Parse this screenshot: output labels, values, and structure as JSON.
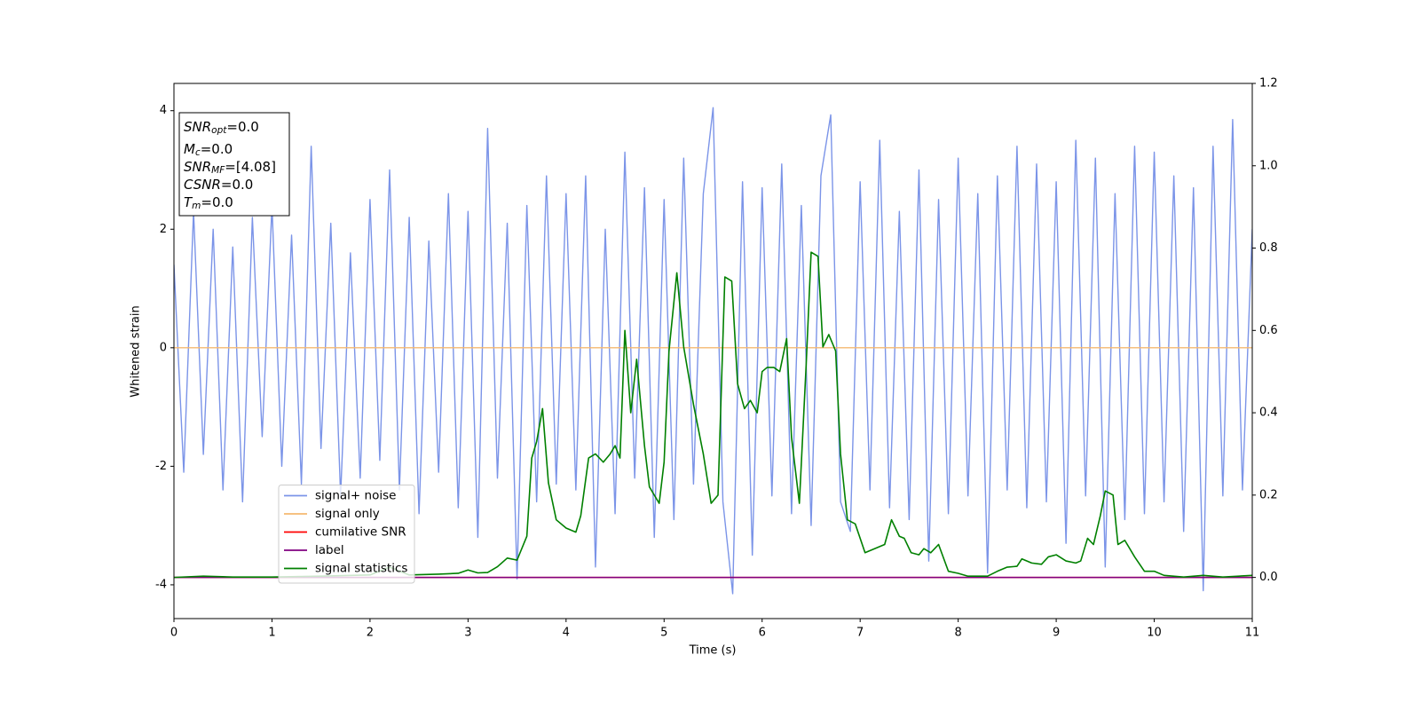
{
  "chart_data": {
    "type": "line",
    "xlabel": "Time (s)",
    "ylabel": "Whitened strain",
    "xlim": [
      0,
      11
    ],
    "xticks": [
      0,
      1,
      2,
      3,
      4,
      5,
      6,
      7,
      8,
      9,
      10,
      11
    ],
    "ylim": [
      -4.57,
      4.46
    ],
    "yticks": [
      -4,
      -2,
      0,
      2,
      4
    ],
    "y2lim": [
      -0.1,
      1.2
    ],
    "y2ticks": [
      {
        "value": 0,
        "label": "0.0"
      },
      0.2,
      0.4,
      0.6,
      0.8,
      {
        "value": 1,
        "label": "1.0"
      },
      1.2
    ],
    "legend": "lower left",
    "annotation": [
      {
        "main": "SNR",
        "sub": "opt",
        "tail": "=0.0"
      },
      {
        "main": "M",
        "sub": "c",
        "tail": "=0.0"
      },
      {
        "main": "SNR",
        "sub": "MF",
        "tail": "=[4.08]"
      },
      {
        "main": "CSNR",
        "sub": null,
        "tail": "=0.0"
      },
      {
        "main": "T",
        "sub": "m",
        "tail": "=0.0"
      }
    ],
    "series": [
      {
        "name": "signal+ noise",
        "color": "#7b94e8",
        "x": [
          0,
          0.1,
          0.2,
          0.3,
          0.4,
          0.5,
          0.6,
          0.7,
          0.8,
          0.9,
          1,
          1.1,
          1.2,
          1.3,
          1.4,
          1.5,
          1.6,
          1.7,
          1.8,
          1.9,
          2,
          2.1,
          2.2,
          2.3,
          2.4,
          2.5,
          2.6,
          2.7,
          2.8,
          2.9,
          3,
          3.1,
          3.2,
          3.3,
          3.4,
          3.5,
          3.6,
          3.7,
          3.8,
          3.9,
          4,
          4.1,
          4.2,
          4.3,
          4.4,
          4.5,
          4.6,
          4.7,
          4.8,
          4.9,
          5,
          5.1,
          5.2,
          5.3,
          5.4,
          5.5,
          5.6,
          5.7,
          5.8,
          5.9,
          6,
          6.1,
          6.2,
          6.3,
          6.4,
          6.5,
          6.6,
          6.7,
          6.8,
          6.9,
          7,
          7.1,
          7.2,
          7.3,
          7.4,
          7.5,
          7.6,
          7.7,
          7.8,
          7.9,
          8,
          8.1,
          8.2,
          8.3,
          8.4,
          8.5,
          8.6,
          8.7,
          8.8,
          8.9,
          9,
          9.1,
          9.2,
          9.3,
          9.4,
          9.5,
          9.6,
          9.7,
          9.8,
          9.9,
          10,
          10.1,
          10.2,
          10.3,
          10.4,
          10.5,
          10.6,
          10.7,
          10.8,
          10.9,
          11
        ],
        "values": [
          1.4,
          -2.1,
          2.3,
          -1.8,
          2.0,
          -2.4,
          1.7,
          -2.6,
          2.2,
          -1.5,
          2.4,
          -2.0,
          1.9,
          -2.3,
          3.4,
          -1.7,
          2.1,
          -2.5,
          1.6,
          -2.2,
          2.5,
          -1.9,
          3.0,
          -2.4,
          2.2,
          -2.8,
          1.8,
          -2.1,
          2.6,
          -2.7,
          2.3,
          -3.2,
          3.7,
          -2.2,
          2.1,
          -3.9,
          2.4,
          -2.6,
          2.9,
          -2.3,
          2.6,
          -2.4,
          2.9,
          -3.7,
          2.0,
          -2.8,
          3.3,
          -2.2,
          2.7,
          -3.2,
          2.5,
          -2.9,
          3.2,
          -2.3,
          2.6,
          4.05,
          -2.6,
          -4.15,
          2.8,
          -3.5,
          2.7,
          -2.5,
          3.1,
          -2.8,
          2.4,
          -3.0,
          2.9,
          3.93,
          -2.6,
          -3.1,
          2.8,
          -2.4,
          3.5,
          -2.7,
          2.3,
          -2.9,
          3.0,
          -3.6,
          2.5,
          -2.8,
          3.2,
          -2.5,
          2.6,
          -3.8,
          2.9,
          -2.4,
          3.4,
          -2.7,
          3.1,
          -2.6,
          2.8,
          -3.3,
          3.5,
          -2.5,
          3.2,
          -3.7,
          2.6,
          -2.9,
          3.4,
          -2.8,
          3.3,
          -2.6,
          2.9,
          -3.1,
          2.7,
          -4.1,
          3.4,
          -2.5,
          3.85,
          -2.4,
          2.0
        ]
      },
      {
        "name": "signal only",
        "color": "#f5b870",
        "x": [
          0,
          11
        ],
        "values": [
          0,
          0
        ]
      },
      {
        "name": "cumilative SNR",
        "color": "#ff0000",
        "axis": "y2",
        "x": [
          0,
          11
        ],
        "values": [
          0,
          0
        ]
      },
      {
        "name": "label",
        "color": "#800080",
        "axis": "y2",
        "x": [
          0,
          11
        ],
        "values": [
          0,
          0
        ]
      },
      {
        "name": "signal statistics",
        "color": "#008000",
        "axis": "y2",
        "x": [
          0,
          0.3,
          0.6,
          1.0,
          1.5,
          2.0,
          2.2,
          2.4,
          2.7,
          2.9,
          3.0,
          3.1,
          3.2,
          3.3,
          3.4,
          3.5,
          3.6,
          3.65,
          3.7,
          3.76,
          3.82,
          3.9,
          4.0,
          4.1,
          4.15,
          4.23,
          4.3,
          4.38,
          4.45,
          4.5,
          4.55,
          4.6,
          4.66,
          4.72,
          4.8,
          4.85,
          4.95,
          5.0,
          5.05,
          5.13,
          5.2,
          5.3,
          5.4,
          5.48,
          5.55,
          5.62,
          5.69,
          5.75,
          5.82,
          5.88,
          5.95,
          6.0,
          6.05,
          6.12,
          6.18,
          6.25,
          6.3,
          6.38,
          6.45,
          6.5,
          6.57,
          6.62,
          6.68,
          6.75,
          6.8,
          6.87,
          6.95,
          7.05,
          7.15,
          7.25,
          7.32,
          7.4,
          7.45,
          7.52,
          7.6,
          7.65,
          7.72,
          7.8,
          7.9,
          8.0,
          8.1,
          8.3,
          8.4,
          8.5,
          8.6,
          8.65,
          8.75,
          8.85,
          8.92,
          9.0,
          9.1,
          9.2,
          9.25,
          9.32,
          9.38,
          9.45,
          9.5,
          9.58,
          9.63,
          9.7,
          9.8,
          9.9,
          10.0,
          10.1,
          10.3,
          10.5,
          10.7,
          11.0
        ],
        "values": [
          0,
          0.003,
          0.001,
          0.001,
          0.003,
          0.006,
          0.025,
          0.006,
          0.008,
          0.01,
          0.018,
          0.011,
          0.012,
          0.026,
          0.047,
          0.042,
          0.1,
          0.29,
          0.33,
          0.41,
          0.23,
          0.14,
          0.12,
          0.11,
          0.15,
          0.29,
          0.3,
          0.28,
          0.3,
          0.32,
          0.29,
          0.6,
          0.4,
          0.53,
          0.32,
          0.22,
          0.18,
          0.28,
          0.55,
          0.74,
          0.56,
          0.42,
          0.3,
          0.18,
          0.2,
          0.73,
          0.72,
          0.47,
          0.41,
          0.43,
          0.4,
          0.5,
          0.51,
          0.51,
          0.5,
          0.58,
          0.34,
          0.18,
          0.52,
          0.79,
          0.78,
          0.56,
          0.59,
          0.55,
          0.3,
          0.14,
          0.13,
          0.06,
          0.07,
          0.08,
          0.14,
          0.1,
          0.095,
          0.06,
          0.055,
          0.07,
          0.06,
          0.08,
          0.015,
          0.01,
          0.003,
          0.003,
          0.015,
          0.025,
          0.027,
          0.045,
          0.035,
          0.032,
          0.05,
          0.055,
          0.04,
          0.035,
          0.04,
          0.095,
          0.08,
          0.15,
          0.21,
          0.2,
          0.08,
          0.09,
          0.05,
          0.015,
          0.015,
          0.005,
          0.001,
          0.005,
          0.001,
          0.005
        ]
      }
    ]
  }
}
